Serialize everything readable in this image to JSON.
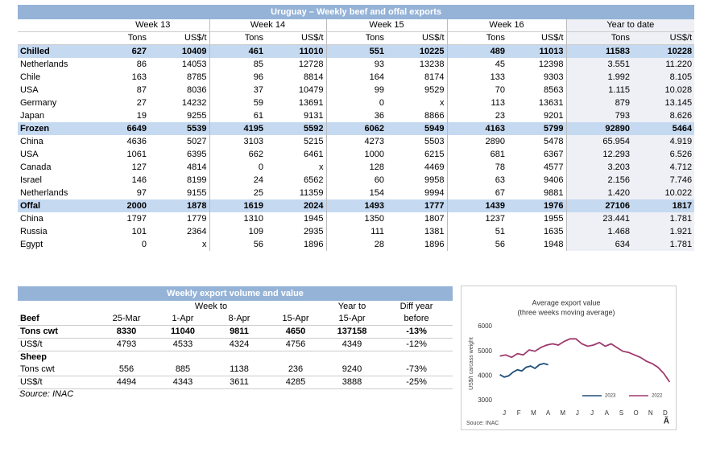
{
  "top_table": {
    "title": "Uruguay – Weekly beef and offal exports",
    "week_headers": [
      "Week 13",
      "Week 14",
      "Week 15",
      "Week 16"
    ],
    "ytd_header": "Year to date",
    "unit_headers": [
      "Tons",
      "US$/t",
      "Tons",
      "US$/t",
      "Tons",
      "US$/t",
      "Tons",
      "US$/t",
      "Tons",
      "US$/t"
    ],
    "sections": [
      {
        "name": "Chilled",
        "totals": [
          "627",
          "10409",
          "461",
          "11010",
          "551",
          "10225",
          "489",
          "11013",
          "11583",
          "10228"
        ],
        "rows": [
          {
            "label": "Netherlands",
            "values": [
              "86",
              "14053",
              "85",
              "12728",
              "93",
              "13238",
              "45",
              "12398",
              "3.551",
              "11.220"
            ]
          },
          {
            "label": "Chile",
            "values": [
              "163",
              "8785",
              "96",
              "8814",
              "164",
              "8174",
              "133",
              "9303",
              "1.992",
              "8.105"
            ]
          },
          {
            "label": "USA",
            "values": [
              "87",
              "8036",
              "37",
              "10479",
              "99",
              "9529",
              "70",
              "8563",
              "1.115",
              "10.028"
            ]
          },
          {
            "label": "Germany",
            "values": [
              "27",
              "14232",
              "59",
              "13691",
              "0",
              "x",
              "113",
              "13631",
              "879",
              "13.145"
            ]
          },
          {
            "label": "Japan",
            "values": [
              "19",
              "9255",
              "61",
              "9131",
              "36",
              "8866",
              "23",
              "9201",
              "793",
              "8.626"
            ]
          }
        ]
      },
      {
        "name": "Frozen",
        "totals": [
          "6649",
          "5539",
          "4195",
          "5592",
          "6062",
          "5949",
          "4163",
          "5799",
          "92890",
          "5464"
        ],
        "rows": [
          {
            "label": "China",
            "values": [
              "4636",
              "5027",
              "3103",
              "5215",
              "4273",
              "5503",
              "2890",
              "5478",
              "65.954",
              "4.919"
            ]
          },
          {
            "label": "USA",
            "values": [
              "1061",
              "6395",
              "662",
              "6461",
              "1000",
              "6215",
              "681",
              "6367",
              "12.293",
              "6.526"
            ]
          },
          {
            "label": "Canada",
            "values": [
              "127",
              "4814",
              "0",
              "x",
              "128",
              "4469",
              "78",
              "4577",
              "3.203",
              "4.712"
            ]
          },
          {
            "label": "Israel",
            "values": [
              "146",
              "8199",
              "24",
              "6562",
              "60",
              "9958",
              "63",
              "9406",
              "2.156",
              "7.746"
            ]
          },
          {
            "label": "Netherlands",
            "values": [
              "97",
              "9155",
              "25",
              "11359",
              "154",
              "9994",
              "67",
              "9881",
              "1.420",
              "10.022"
            ]
          }
        ]
      },
      {
        "name": "Offal",
        "totals": [
          "2000",
          "1878",
          "1619",
          "2024",
          "1493",
          "1777",
          "1439",
          "1976",
          "27106",
          "1817"
        ],
        "rows": [
          {
            "label": "China",
            "values": [
              "1797",
              "1779",
              "1310",
              "1945",
              "1350",
              "1807",
              "1237",
              "1955",
              "23.441",
              "1.781"
            ]
          },
          {
            "label": "Russia",
            "values": [
              "101",
              "2364",
              "109",
              "2935",
              "111",
              "1381",
              "51",
              "1635",
              "1.468",
              "1.921"
            ]
          },
          {
            "label": "Egypt",
            "values": [
              "0",
              "x",
              "56",
              "1896",
              "28",
              "1896",
              "56",
              "1948",
              "634",
              "1.781"
            ]
          }
        ]
      }
    ]
  },
  "bottom_table": {
    "title": "Weekly export volume and value",
    "header_week": "Week to",
    "header_ytd": "Year to",
    "header_diff": "Diff year",
    "columns": [
      "25-Mar",
      "1-Apr",
      "8-Apr",
      "15-Apr",
      "15-Apr",
      "before"
    ],
    "groups": [
      {
        "name": "Beef",
        "rows": [
          {
            "label": "Tons cwt",
            "cells": [
              "8330",
              "11040",
              "9811",
              "4650",
              "137158",
              "-13%"
            ]
          },
          {
            "label": "US$/t",
            "cells": [
              "4793",
              "4533",
              "4324",
              "4756",
              "4349",
              "-12%"
            ]
          }
        ]
      },
      {
        "name": "Sheep",
        "rows": [
          {
            "label": "Tons cwt",
            "cells": [
              "556",
              "885",
              "1138",
              "236",
              "9240",
              "-73%"
            ]
          },
          {
            "label": "US$/t",
            "cells": [
              "4494",
              "4343",
              "3611",
              "4285",
              "3888",
              "-25%"
            ]
          }
        ]
      }
    ],
    "source": "Source: INAC"
  },
  "chart_data": {
    "type": "line",
    "title": "Average export  value",
    "subtitle": "(three weeks moving average)",
    "y_label": "US$/t carcass weight",
    "source": "Souce: INAC",
    "logo": "Ã",
    "xlim": [
      0,
      12
    ],
    "xticks": [
      {
        "value": 0.5,
        "label": "J"
      },
      {
        "value": 1.5,
        "label": "F"
      },
      {
        "value": 2.5,
        "label": "M"
      },
      {
        "value": 3.5,
        "label": "A"
      },
      {
        "value": 4.5,
        "label": "M"
      },
      {
        "value": 5.5,
        "label": "J"
      },
      {
        "value": 6.5,
        "label": "J"
      },
      {
        "value": 7.5,
        "label": "A"
      },
      {
        "value": 8.5,
        "label": "S"
      },
      {
        "value": 9.5,
        "label": "O"
      },
      {
        "value": 10.5,
        "label": "N"
      },
      {
        "value": 11.5,
        "label": "D"
      }
    ],
    "ylim": [
      3000,
      6000
    ],
    "yticks": [
      3000,
      4000,
      5000,
      6000
    ],
    "grid": false,
    "legend": "bottom",
    "series": [
      {
        "name": "2023",
        "color": "#1f4e79",
        "x": [
          0.2,
          0.5,
          0.8,
          1.1,
          1.4,
          1.7,
          2.0,
          2.3,
          2.6,
          2.9,
          3.2,
          3.5
        ],
        "values": [
          4050,
          3950,
          4000,
          4150,
          4250,
          4200,
          4350,
          4400,
          4300,
          4450,
          4500,
          4450
        ]
      },
      {
        "name": "2022",
        "color": "#9e3a6e",
        "x": [
          0.2,
          0.6,
          1.0,
          1.4,
          1.8,
          2.2,
          2.6,
          3.0,
          3.4,
          3.8,
          4.2,
          4.6,
          5.0,
          5.4,
          5.8,
          6.2,
          6.6,
          7.0,
          7.4,
          7.8,
          8.2,
          8.6,
          9.0,
          9.4,
          9.8,
          10.2,
          10.6,
          11.0,
          11.4,
          11.8
        ],
        "values": [
          4800,
          4850,
          4750,
          4900,
          4850,
          5050,
          5000,
          5150,
          5250,
          5300,
          5250,
          5400,
          5500,
          5500,
          5300,
          5200,
          5250,
          5350,
          5200,
          5300,
          5150,
          5000,
          4950,
          4850,
          4750,
          4600,
          4500,
          4350,
          4100,
          3750
        ]
      }
    ]
  }
}
